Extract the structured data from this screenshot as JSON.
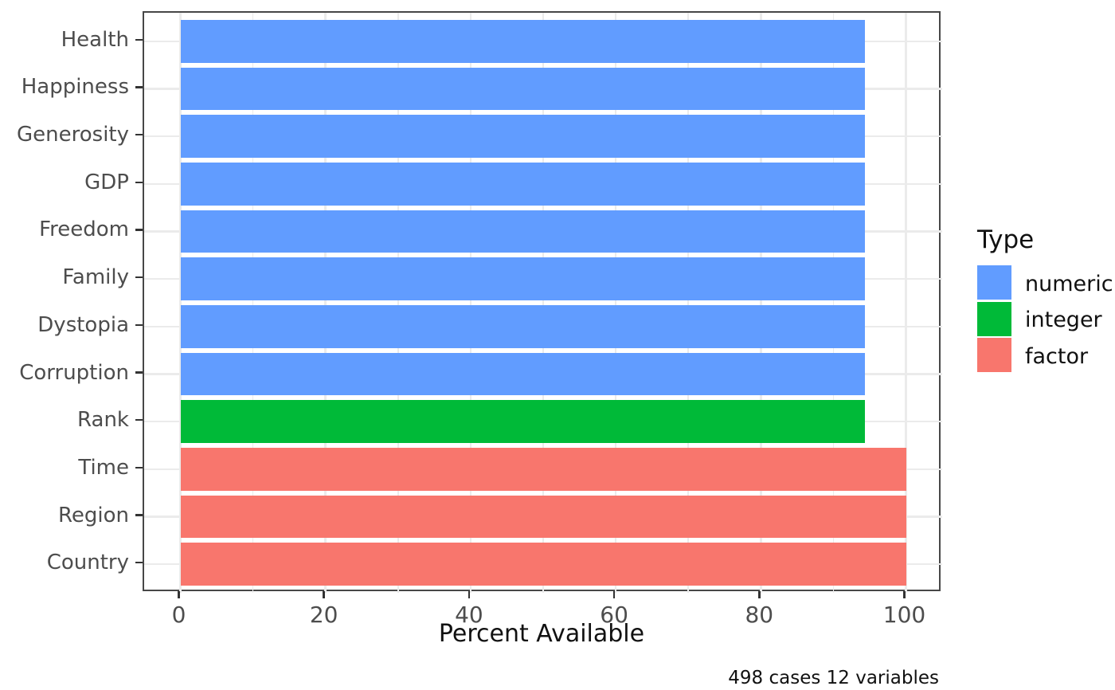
{
  "figure": {
    "xlabel": "Percent Available",
    "caption": "498 cases 12 variables",
    "legend_title": "Type"
  },
  "chart_data": {
    "type": "bar",
    "orientation": "horizontal",
    "title": "",
    "xlabel": "Percent Available",
    "ylabel": "",
    "caption": "498 cases 12 variables",
    "xlim": [
      0,
      100
    ],
    "xticks": [
      0,
      20,
      40,
      60,
      80,
      100
    ],
    "minor_xticks": [
      10,
      30,
      50,
      70,
      90
    ],
    "grid": true,
    "legend": {
      "title": "Type",
      "position": "right",
      "entries": [
        {
          "label": "numeric",
          "color": "#619CFF"
        },
        {
          "label": "integer",
          "color": "#00BA38"
        },
        {
          "label": "factor",
          "color": "#F8766D"
        }
      ]
    },
    "categories": [
      "Health",
      "Happiness",
      "Generosity",
      "GDP",
      "Freedom",
      "Family",
      "Dystopia",
      "Corruption",
      "Rank",
      "Time",
      "Region",
      "Country"
    ],
    "values": [
      94.4,
      94.4,
      94.4,
      94.4,
      94.4,
      94.4,
      94.4,
      94.4,
      94.4,
      100,
      100,
      100
    ],
    "types": [
      "numeric",
      "numeric",
      "numeric",
      "numeric",
      "numeric",
      "numeric",
      "numeric",
      "numeric",
      "integer",
      "factor",
      "factor",
      "factor"
    ]
  }
}
